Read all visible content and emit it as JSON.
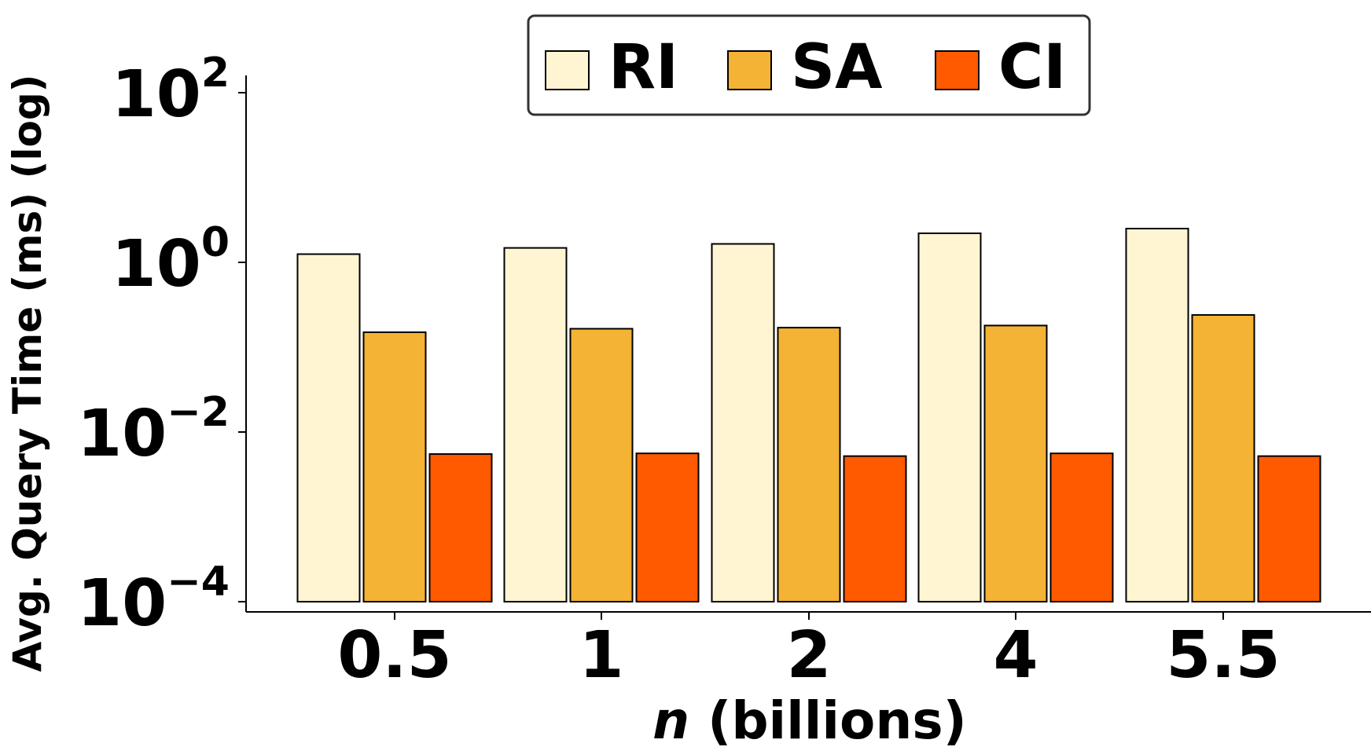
{
  "chart_data": {
    "type": "bar",
    "scale": "log",
    "categories": [
      "0.5",
      "1",
      "2",
      "4",
      "5.5"
    ],
    "series": [
      {
        "name": "RI",
        "color": "#FFF5D2",
        "values": [
          1.25,
          1.48,
          1.65,
          2.2,
          2.5
        ]
      },
      {
        "name": "SA",
        "color": "#F4B335",
        "values": [
          0.15,
          0.165,
          0.17,
          0.18,
          0.24
        ]
      },
      {
        "name": "CI",
        "color": "#FF5A00",
        "values": [
          0.0055,
          0.0056,
          0.0052,
          0.0056,
          0.0052
        ]
      }
    ],
    "yticks": [
      {
        "value": 0.0001,
        "base": "10",
        "exp": "−4"
      },
      {
        "value": 0.01,
        "base": "10",
        "exp": "−2"
      },
      {
        "value": 1,
        "base": "10",
        "exp": "0"
      },
      {
        "value": 100,
        "base": "10",
        "exp": "2"
      }
    ],
    "ylim": [
      0.0001,
      100
    ],
    "xlabel": {
      "italic": "n",
      "rest": " (billions)"
    },
    "ylabel": "Avg. Query Time (ms) (log)",
    "legend_position": "top-center",
    "grid": false
  }
}
